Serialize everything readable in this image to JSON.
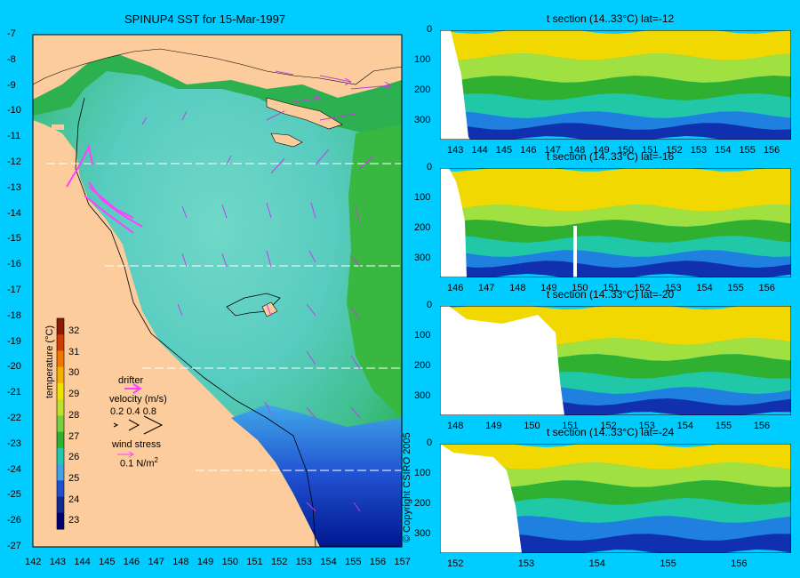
{
  "map": {
    "title": "SPINUP4 SST for 15-Mar-1997",
    "lon_ticks": [
      "142",
      "143",
      "144",
      "145",
      "146",
      "147",
      "148",
      "149",
      "150",
      "151",
      "152",
      "153",
      "154",
      "155",
      "156",
      "157"
    ],
    "lat_ticks": [
      "-7",
      "-8",
      "-9",
      "-10",
      "-11",
      "-12",
      "-13",
      "-14",
      "-15",
      "-16",
      "-17",
      "-18",
      "-19",
      "-20",
      "-21",
      "-22",
      "-23",
      "-24",
      "-25",
      "-26",
      "-27"
    ],
    "section_lats": [
      -12,
      -16,
      -20,
      -24
    ]
  },
  "colorbar": {
    "ticks": [
      "32",
      "31",
      "30",
      "29",
      "28",
      "27",
      "26",
      "25",
      "24",
      "23"
    ],
    "label": "temperature (°C)",
    "colors": [
      "#8b1a00",
      "#d23a00",
      "#f07800",
      "#f5b000",
      "#f0e000",
      "#c0e030",
      "#78d040",
      "#30b030",
      "#20c8b0",
      "#40a0e8",
      "#2050d0",
      "#102890",
      "#000070"
    ]
  },
  "legend": {
    "drifter": "drifter",
    "velocity": "velocity (m/s)",
    "speeds": "0.2 0.4 0.8",
    "wind": "wind stress",
    "wind_value": "0.1 N/m",
    "wind_sup": "2"
  },
  "copyright": "© Copyright CSIRO 2005",
  "sections": [
    {
      "title": "t section (14..33°C) lat=-12",
      "ticks": [
        "143",
        "144",
        "145",
        "146",
        "147",
        "148",
        "149",
        "150",
        "151",
        "152",
        "153",
        "154",
        "155",
        "156"
      ],
      "depth_ticks": [
        "0",
        "100",
        "200",
        "300"
      ]
    },
    {
      "title": "t section (14..33°C) lat=-16",
      "ticks": [
        "146",
        "147",
        "148",
        "149",
        "150",
        "151",
        "152",
        "153",
        "154",
        "155",
        "156"
      ],
      "depth_ticks": [
        "0",
        "100",
        "200",
        "300"
      ]
    },
    {
      "title": "t section (14..33°C) lat=-20",
      "ticks": [
        "148",
        "149",
        "150",
        "151",
        "152",
        "153",
        "154",
        "155",
        "156"
      ],
      "depth_ticks": [
        "0",
        "100",
        "200",
        "300"
      ]
    },
    {
      "title": "t section (14..33°C) lat=-24",
      "ticks": [
        "152",
        "153",
        "154",
        "155",
        "156"
      ],
      "depth_ticks": [
        "0",
        "100",
        "200",
        "300"
      ]
    }
  ],
  "colors": {
    "background": "#00ccff",
    "land": "#fccc9c",
    "warm": "#f0e000",
    "green": "#30b030",
    "cyan": "#60d8c0",
    "blue": "#2060e0",
    "navy": "#001890",
    "arrow": "#c040e0",
    "drifter": "#ff40ff"
  }
}
